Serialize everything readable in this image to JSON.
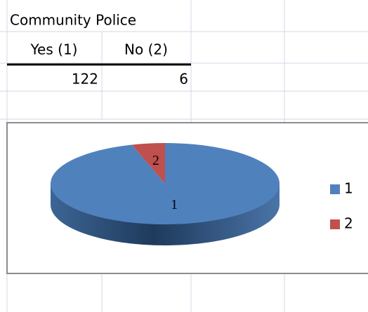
{
  "table": {
    "title": "Community Police",
    "headers": [
      "Yes (1)",
      "No (2)"
    ],
    "rows": [
      [
        122,
        6
      ]
    ]
  },
  "chart_data": {
    "type": "pie",
    "categories": [
      "1",
      "2"
    ],
    "values": [
      122,
      6
    ],
    "colors": [
      "#4f81bd",
      "#c0504d"
    ],
    "legend": "right",
    "data_labels": true
  }
}
